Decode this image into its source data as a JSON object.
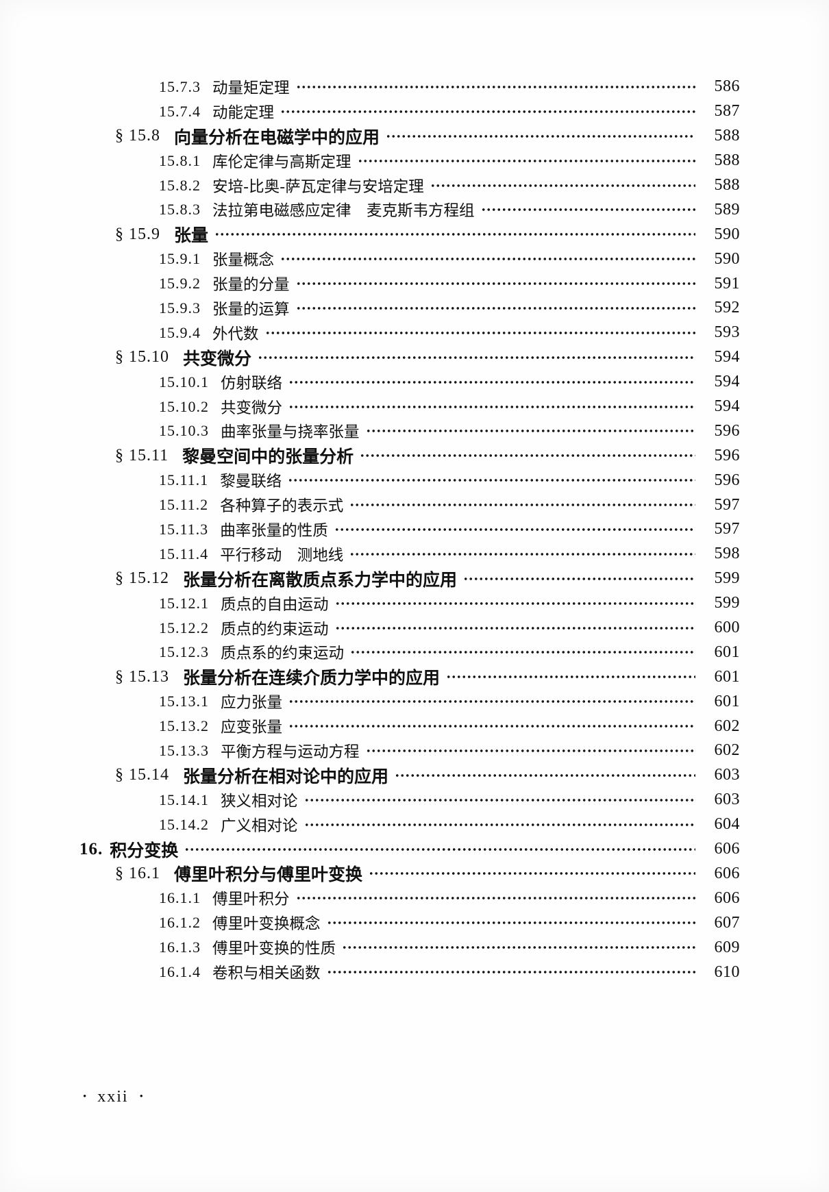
{
  "footer": {
    "bullet": "•",
    "page_roman": "xxii"
  },
  "toc": {
    "entries": [
      {
        "level": 3,
        "label": "15.7.3",
        "title": "动量矩定理",
        "page": "586"
      },
      {
        "level": 3,
        "label": "15.7.4",
        "title": "动能定理",
        "page": "587"
      },
      {
        "level": 2,
        "label": "§ 15.8",
        "title": "向量分析在电磁学中的应用",
        "page": "588"
      },
      {
        "level": 3,
        "label": "15.8.1",
        "title": "库伦定律与高斯定理",
        "page": "588"
      },
      {
        "level": 3,
        "label": "15.8.2",
        "title": "安培-比奥-萨瓦定律与安培定理",
        "page": "588"
      },
      {
        "level": 3,
        "label": "15.8.3",
        "title": "法拉第电磁感应定律　麦克斯韦方程组",
        "page": "589"
      },
      {
        "level": 2,
        "label": "§ 15.9",
        "title": "张量",
        "page": "590"
      },
      {
        "level": 3,
        "label": "15.9.1",
        "title": "张量概念",
        "page": "590"
      },
      {
        "level": 3,
        "label": "15.9.2",
        "title": "张量的分量",
        "page": "591"
      },
      {
        "level": 3,
        "label": "15.9.3",
        "title": "张量的运算",
        "page": "592"
      },
      {
        "level": 3,
        "label": "15.9.4",
        "title": "外代数",
        "page": "593"
      },
      {
        "level": 2,
        "label": "§ 15.10",
        "title": "共变微分",
        "page": "594"
      },
      {
        "level": 3,
        "label": "15.10.1",
        "title": "仿射联络",
        "page": "594"
      },
      {
        "level": 3,
        "label": "15.10.2",
        "title": "共变微分",
        "page": "594"
      },
      {
        "level": 3,
        "label": "15.10.3",
        "title": "曲率张量与挠率张量",
        "page": "596"
      },
      {
        "level": 2,
        "label": "§ 15.11",
        "title": "黎曼空间中的张量分析",
        "page": "596"
      },
      {
        "level": 3,
        "label": "15.11.1",
        "title": "黎曼联络",
        "page": "596"
      },
      {
        "level": 3,
        "label": "15.11.2",
        "title": "各种算子的表示式",
        "page": "597"
      },
      {
        "level": 3,
        "label": "15.11.3",
        "title": "曲率张量的性质",
        "page": "597"
      },
      {
        "level": 3,
        "label": "15.11.4",
        "title": "平行移动　测地线",
        "page": "598"
      },
      {
        "level": 2,
        "label": "§ 15.12",
        "title": "张量分析在离散质点系力学中的应用",
        "page": "599"
      },
      {
        "level": 3,
        "label": "15.12.1",
        "title": "质点的自由运动",
        "page": "599"
      },
      {
        "level": 3,
        "label": "15.12.2",
        "title": "质点的约束运动",
        "page": "600"
      },
      {
        "level": 3,
        "label": "15.12.3",
        "title": "质点系的约束运动",
        "page": "601"
      },
      {
        "level": 2,
        "label": "§ 15.13",
        "title": "张量分析在连续介质力学中的应用",
        "page": "601"
      },
      {
        "level": 3,
        "label": "15.13.1",
        "title": "应力张量",
        "page": "601"
      },
      {
        "level": 3,
        "label": "15.13.2",
        "title": "应变张量",
        "page": "602"
      },
      {
        "level": 3,
        "label": "15.13.3",
        "title": "平衡方程与运动方程",
        "page": "602"
      },
      {
        "level": 2,
        "label": "§ 15.14",
        "title": "张量分析在相对论中的应用",
        "page": "603"
      },
      {
        "level": 3,
        "label": "15.14.1",
        "title": "狭义相对论",
        "page": "603"
      },
      {
        "level": 3,
        "label": "15.14.2",
        "title": "广义相对论",
        "page": "604"
      },
      {
        "level": 1,
        "label": "16.",
        "title": "积分变换",
        "page": "606"
      },
      {
        "level": 2,
        "label": "§ 16.1",
        "title": "傅里叶积分与傅里叶变换",
        "page": "606"
      },
      {
        "level": 3,
        "label": "16.1.1",
        "title": "傅里叶积分",
        "page": "606"
      },
      {
        "level": 3,
        "label": "16.1.2",
        "title": "傅里叶变换概念",
        "page": "607"
      },
      {
        "level": 3,
        "label": "16.1.3",
        "title": "傅里叶变换的性质",
        "page": "609"
      },
      {
        "level": 3,
        "label": "16.1.4",
        "title": "卷积与相关函数",
        "page": "610"
      }
    ]
  }
}
